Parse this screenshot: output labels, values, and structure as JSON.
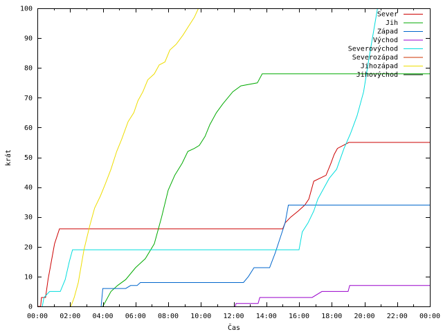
{
  "chart_data": {
    "type": "line",
    "title": "",
    "xlabel": "Čas",
    "ylabel": "krát",
    "xlim": [
      0,
      24
    ],
    "ylim": [
      0,
      100
    ],
    "x_unit": "hours",
    "x_ticks": [
      0,
      2,
      4,
      6,
      8,
      10,
      12,
      14,
      16,
      18,
      20,
      22,
      24
    ],
    "x_tick_labels": [
      "00:00",
      "02:00",
      "04:00",
      "06:00",
      "08:00",
      "10:00",
      "12:00",
      "14:00",
      "16:00",
      "18:00",
      "20:00",
      "22:00",
      "00:00"
    ],
    "y_ticks": [
      0,
      10,
      20,
      30,
      40,
      50,
      60,
      70,
      80,
      90,
      100
    ],
    "y_tick_labels": [
      "0",
      "10",
      "20",
      "30",
      "40",
      "50",
      "60",
      "70",
      "80",
      "90",
      "100"
    ],
    "grid": false,
    "legend_position": "top-right",
    "series": [
      {
        "name": "Sever",
        "color": "#cc0000",
        "points": [
          [
            0.0,
            0
          ],
          [
            0.2,
            0
          ],
          [
            0.25,
            3
          ],
          [
            0.5,
            3
          ],
          [
            0.65,
            9
          ],
          [
            0.85,
            15
          ],
          [
            1.05,
            21
          ],
          [
            1.35,
            26
          ],
          [
            15.0,
            26
          ],
          [
            15.15,
            28
          ],
          [
            15.5,
            30
          ],
          [
            15.95,
            32
          ],
          [
            16.35,
            34
          ],
          [
            16.6,
            36
          ],
          [
            16.9,
            42
          ],
          [
            17.65,
            44
          ],
          [
            17.95,
            48
          ],
          [
            18.15,
            51
          ],
          [
            18.35,
            53
          ],
          [
            19.05,
            55
          ],
          [
            24.0,
            55
          ]
        ]
      },
      {
        "name": "Jih",
        "color": "#00aa00",
        "points": [
          [
            4.0,
            0
          ],
          [
            4.1,
            1
          ],
          [
            4.5,
            5
          ],
          [
            4.9,
            7
          ],
          [
            5.4,
            9
          ],
          [
            6.0,
            13
          ],
          [
            6.6,
            16
          ],
          [
            7.15,
            21
          ],
          [
            7.6,
            30
          ],
          [
            8.0,
            39
          ],
          [
            8.4,
            44
          ],
          [
            8.85,
            48
          ],
          [
            9.2,
            52
          ],
          [
            9.6,
            53
          ],
          [
            9.9,
            54
          ],
          [
            10.25,
            57
          ],
          [
            10.55,
            61
          ],
          [
            10.95,
            65
          ],
          [
            11.35,
            68
          ],
          [
            11.95,
            72
          ],
          [
            12.45,
            74
          ],
          [
            13.45,
            75
          ],
          [
            13.75,
            78
          ],
          [
            24.0,
            78
          ]
        ]
      },
      {
        "name": "Západ",
        "color": "#0066cc",
        "points": [
          [
            3.9,
            0
          ],
          [
            4.0,
            6
          ],
          [
            5.4,
            6
          ],
          [
            5.7,
            7
          ],
          [
            6.1,
            7
          ],
          [
            6.3,
            8
          ],
          [
            12.6,
            8
          ],
          [
            12.9,
            10
          ],
          [
            13.25,
            13
          ],
          [
            14.2,
            13
          ],
          [
            14.55,
            18
          ],
          [
            14.85,
            23
          ],
          [
            15.15,
            28
          ],
          [
            15.35,
            34
          ],
          [
            24.0,
            34
          ]
        ]
      },
      {
        "name": "Východ",
        "color": "#9900cc",
        "points": [
          [
            12.1,
            0
          ],
          [
            12.15,
            1
          ],
          [
            13.5,
            1
          ],
          [
            13.6,
            3
          ],
          [
            16.8,
            3
          ],
          [
            17.4,
            5
          ],
          [
            19.0,
            5
          ],
          [
            19.1,
            7
          ],
          [
            24.0,
            7
          ]
        ]
      },
      {
        "name": "Severovýchod",
        "color": "#00dddd",
        "points": [
          [
            0.3,
            0
          ],
          [
            0.4,
            3
          ],
          [
            0.75,
            5
          ],
          [
            1.4,
            5
          ],
          [
            1.7,
            9
          ],
          [
            1.95,
            15
          ],
          [
            2.15,
            19
          ],
          [
            16.0,
            19
          ],
          [
            16.2,
            25
          ],
          [
            16.55,
            28
          ],
          [
            16.9,
            32
          ],
          [
            17.15,
            36
          ],
          [
            17.55,
            40
          ],
          [
            17.85,
            43
          ],
          [
            18.3,
            46
          ],
          [
            18.75,
            53
          ],
          [
            19.15,
            58
          ],
          [
            19.55,
            64
          ],
          [
            19.95,
            72
          ],
          [
            20.3,
            84
          ],
          [
            20.55,
            92
          ],
          [
            20.8,
            100
          ]
        ]
      },
      {
        "name": "Severozápad",
        "color": "#cc3300",
        "points": []
      },
      {
        "name": "Jihozápad",
        "color": "#eedd00",
        "points": [
          [
            2.05,
            0
          ],
          [
            2.25,
            3
          ],
          [
            2.5,
            8
          ],
          [
            2.85,
            19
          ],
          [
            3.2,
            27
          ],
          [
            3.5,
            33
          ],
          [
            3.85,
            37
          ],
          [
            4.15,
            41
          ],
          [
            4.5,
            46
          ],
          [
            4.85,
            52
          ],
          [
            5.15,
            56
          ],
          [
            5.55,
            62
          ],
          [
            5.9,
            65
          ],
          [
            6.15,
            69
          ],
          [
            6.45,
            72
          ],
          [
            6.75,
            76
          ],
          [
            7.15,
            78
          ],
          [
            7.45,
            81
          ],
          [
            7.8,
            82
          ],
          [
            8.1,
            86
          ],
          [
            8.5,
            88
          ],
          [
            8.9,
            91
          ],
          [
            9.25,
            94
          ],
          [
            9.6,
            97
          ],
          [
            9.85,
            100
          ]
        ]
      },
      {
        "name": "Jihovýchod",
        "color": "#002200",
        "points": []
      }
    ]
  }
}
